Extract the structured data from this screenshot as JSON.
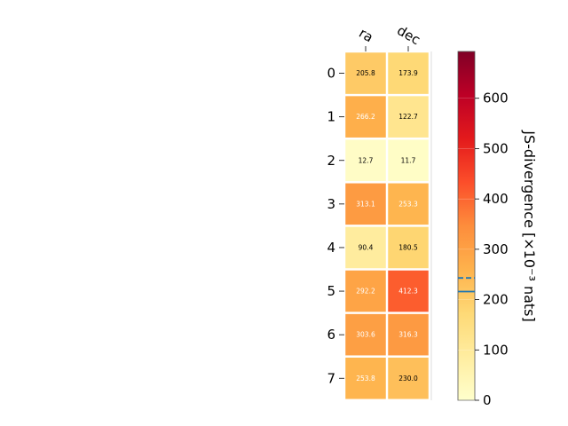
{
  "chart_data": {
    "type": "heatmap",
    "columns": [
      "ra",
      "dec"
    ],
    "rows": [
      "0",
      "1",
      "2",
      "3",
      "4",
      "5",
      "6",
      "7"
    ],
    "values": [
      [
        205.8,
        173.9
      ],
      [
        266.2,
        122.7
      ],
      [
        12.7,
        11.7
      ],
      [
        313.1,
        253.3
      ],
      [
        90.4,
        180.5
      ],
      [
        292.2,
        412.3
      ],
      [
        303.6,
        316.3
      ],
      [
        253.8,
        230.0
      ]
    ],
    "value_labels": [
      [
        "205.8",
        "173.9"
      ],
      [
        "266.2",
        "122.7"
      ],
      [
        "12.7",
        "11.7"
      ],
      [
        "313.1",
        "253.3"
      ],
      [
        "90.4",
        "180.5"
      ],
      [
        "292.2",
        "412.3"
      ],
      [
        "303.6",
        "316.3"
      ],
      [
        "253.8",
        "230.0"
      ]
    ],
    "colorbar": {
      "label": "JS-divergence [×10⁻³ nats]",
      "range": [
        0,
        693
      ],
      "ticks": [
        0,
        100,
        200,
        300,
        400,
        500,
        600
      ],
      "tick_labels": [
        "0",
        "100",
        "200",
        "300",
        "400",
        "500",
        "600"
      ],
      "colormap": "YlOrRd",
      "median_line": 216,
      "dashed_line": 243,
      "line_color": "#1f77b4"
    }
  }
}
